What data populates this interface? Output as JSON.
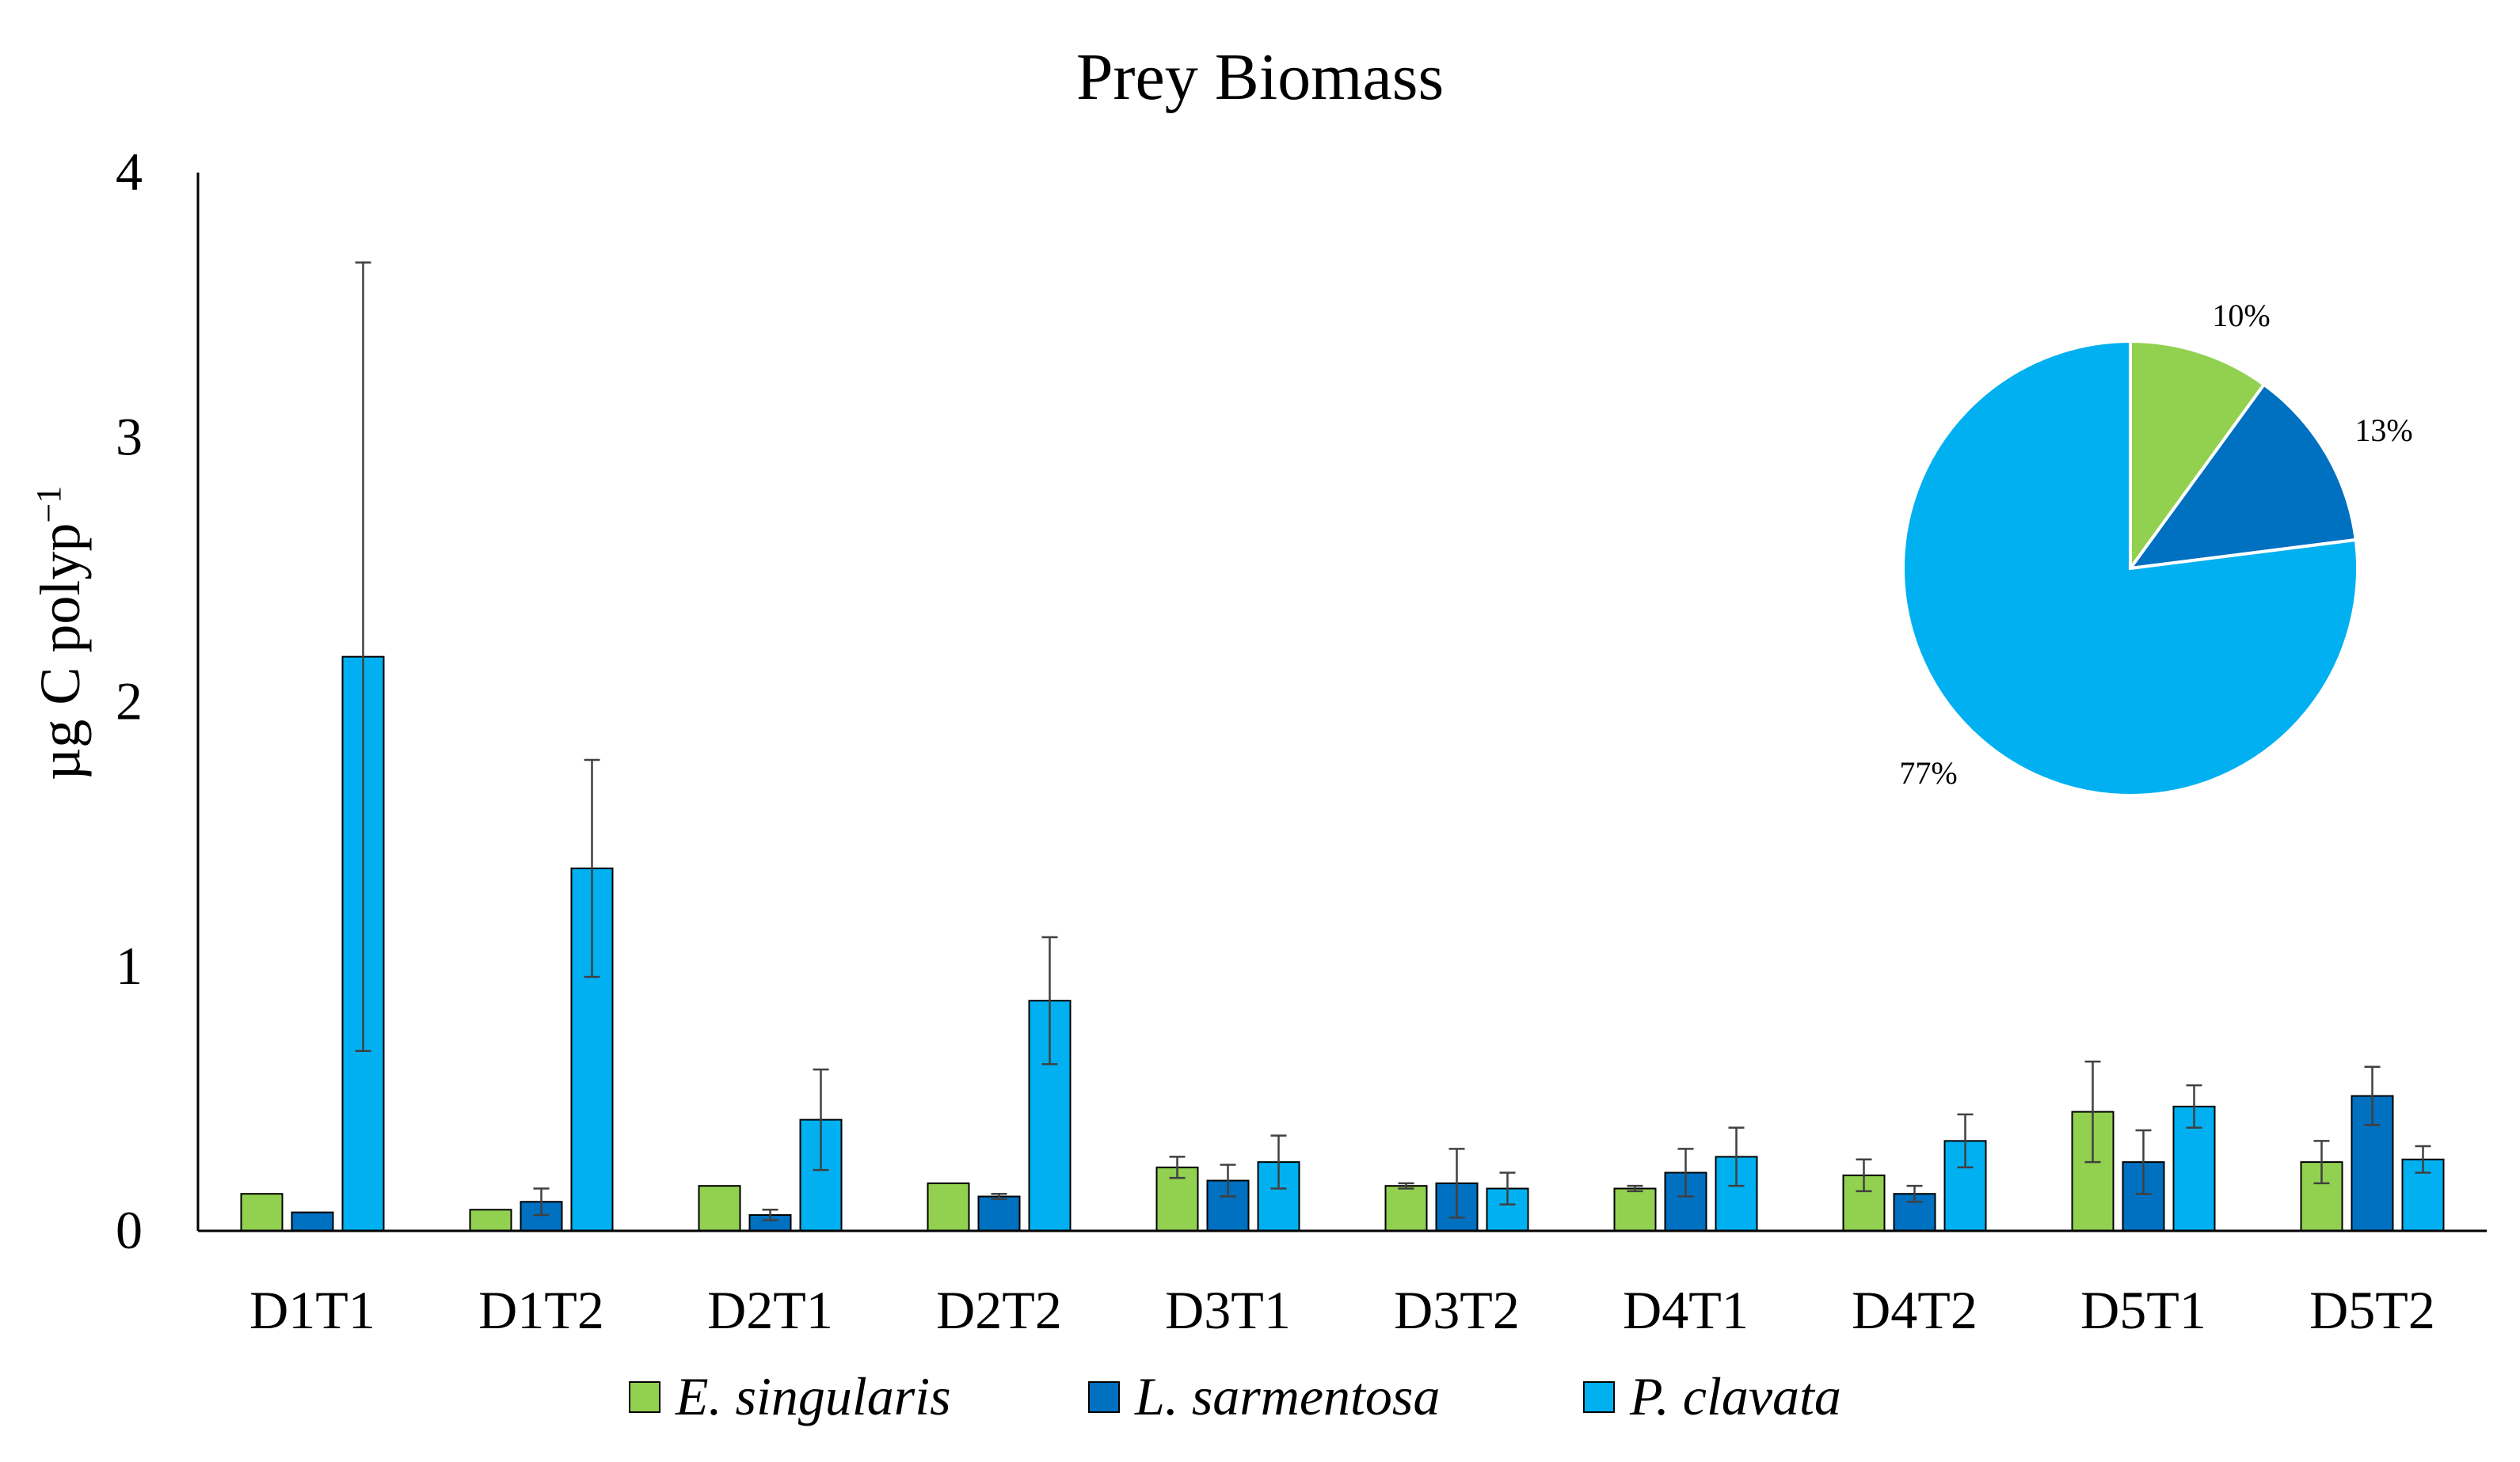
{
  "chart_data": [
    {
      "type": "bar",
      "title": "Prey Biomass",
      "xlabel": "",
      "ylabel": "µg C polyp",
      "ylabel_superscript": "−1",
      "ylim": [
        0,
        4
      ],
      "yticks": [
        "0",
        "1",
        "2",
        "3",
        "4"
      ],
      "categories": [
        "D1T1",
        "D1T2",
        "D2T1",
        "D2T2",
        "D3T1",
        "D3T2",
        "D4T1",
        "D4T2",
        "D5T1",
        "D5T2"
      ],
      "series": [
        {
          "name": "E. singularis",
          "color": "#92d050",
          "values": [
            0.14,
            0.08,
            0.17,
            0.18,
            0.24,
            0.17,
            0.16,
            0.21,
            0.45,
            0.26
          ],
          "errors": [
            0.0,
            0.0,
            0.0,
            0.0,
            0.04,
            0.01,
            0.01,
            0.06,
            0.19,
            0.08
          ]
        },
        {
          "name": "L. sarmentosa",
          "color": "#0070c0",
          "values": [
            0.07,
            0.11,
            0.06,
            0.13,
            0.19,
            0.18,
            0.22,
            0.14,
            0.26,
            0.51
          ],
          "errors": [
            0.0,
            0.05,
            0.02,
            0.01,
            0.06,
            0.13,
            0.09,
            0.03,
            0.12,
            0.11
          ]
        },
        {
          "name": "P. clavata",
          "color": "#00b0f0",
          "values": [
            2.17,
            1.37,
            0.42,
            0.87,
            0.26,
            0.16,
            0.28,
            0.34,
            0.47,
            0.27
          ],
          "errors": [
            1.49,
            0.41,
            0.19,
            0.24,
            0.1,
            0.06,
            0.11,
            0.1,
            0.08,
            0.05
          ]
        }
      ],
      "legend_position": "bottom"
    },
    {
      "type": "pie",
      "labels": [
        "E. singularis",
        "L. sarmentosa",
        "P. clavata"
      ],
      "values": [
        10,
        13,
        77
      ],
      "value_labels": [
        "10%",
        "13%",
        "77%"
      ],
      "colors": [
        "#92d050",
        "#0070c0",
        "#00b0f0"
      ]
    }
  ]
}
